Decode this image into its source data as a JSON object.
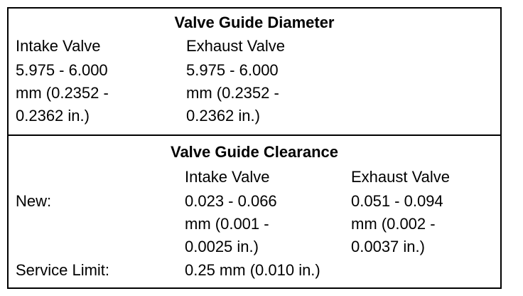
{
  "diameter": {
    "title": "Valve Guide Diameter",
    "headers": [
      "Intake Valve",
      "Exhaust Valve"
    ],
    "cells": [
      [
        "5.975 - 6.000",
        "mm (0.2352 -",
        "0.2362 in.)"
      ],
      [
        "5.975 - 6.000",
        "mm (0.2352 -",
        "0.2362 in.)"
      ]
    ]
  },
  "clearance": {
    "title": "Valve Guide Clearance",
    "headers": [
      "Intake Valve",
      "Exhaust Valve"
    ],
    "rows": [
      {
        "label": "New:",
        "cells": [
          [
            "0.023 - 0.066",
            "mm (0.001 -",
            "0.0025 in.)"
          ],
          [
            "0.051 - 0.094",
            "mm (0.002 -",
            "0.0037 in.)"
          ]
        ]
      },
      {
        "label": "Service Limit:",
        "cells": [
          [
            "0.25 mm (0.010 in.)"
          ]
        ]
      }
    ]
  }
}
